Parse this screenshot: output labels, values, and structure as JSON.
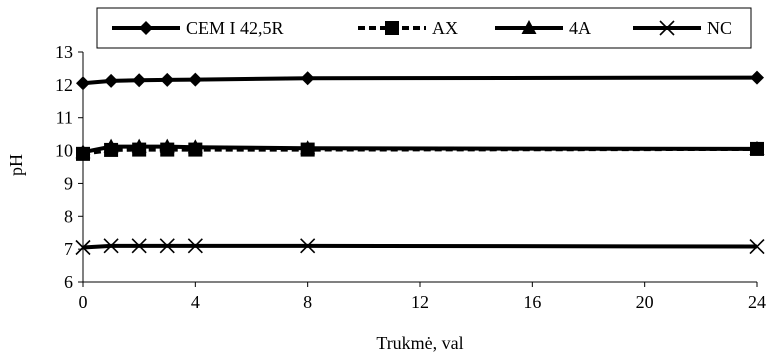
{
  "chart_data": {
    "type": "line",
    "xlabel": "Trukmė, val",
    "ylabel": "pH",
    "xlim": [
      0,
      24
    ],
    "ylim": [
      6,
      13
    ],
    "xticks": [
      0,
      4,
      8,
      12,
      16,
      20,
      24
    ],
    "yticks": [
      6,
      7,
      8,
      9,
      10,
      11,
      12,
      13
    ],
    "grid": false,
    "legend_position": "top",
    "series": [
      {
        "name": "CEM I 42,5R",
        "marker": "diamond",
        "line_style": "solid",
        "color": "#000000",
        "points": [
          [
            0,
            12.05
          ],
          [
            1,
            12.12
          ],
          [
            2,
            12.14
          ],
          [
            3,
            12.15
          ],
          [
            4,
            12.16
          ],
          [
            8,
            12.2
          ],
          [
            24,
            12.22
          ]
        ]
      },
      {
        "name": "AX",
        "marker": "square",
        "line_style": "dashed",
        "color": "#000000",
        "points": [
          [
            0,
            9.9
          ],
          [
            1,
            10.02
          ],
          [
            2,
            10.03
          ],
          [
            3,
            10.03
          ],
          [
            4,
            10.03
          ],
          [
            8,
            10.03
          ],
          [
            24,
            10.05
          ]
        ]
      },
      {
        "name": "4A",
        "marker": "triangle",
        "line_style": "solid",
        "color": "#000000",
        "points": [
          [
            0,
            9.95
          ],
          [
            1,
            10.12
          ],
          [
            2,
            10.12
          ],
          [
            3,
            10.12
          ],
          [
            4,
            10.1
          ],
          [
            8,
            10.07
          ],
          [
            24,
            10.05
          ]
        ]
      },
      {
        "name": "NC",
        "marker": "x",
        "line_style": "solid",
        "color": "#000000",
        "points": [
          [
            0,
            7.05
          ],
          [
            1,
            7.1
          ],
          [
            2,
            7.1
          ],
          [
            3,
            7.1
          ],
          [
            4,
            7.1
          ],
          [
            8,
            7.1
          ],
          [
            24,
            7.08
          ]
        ]
      }
    ]
  }
}
